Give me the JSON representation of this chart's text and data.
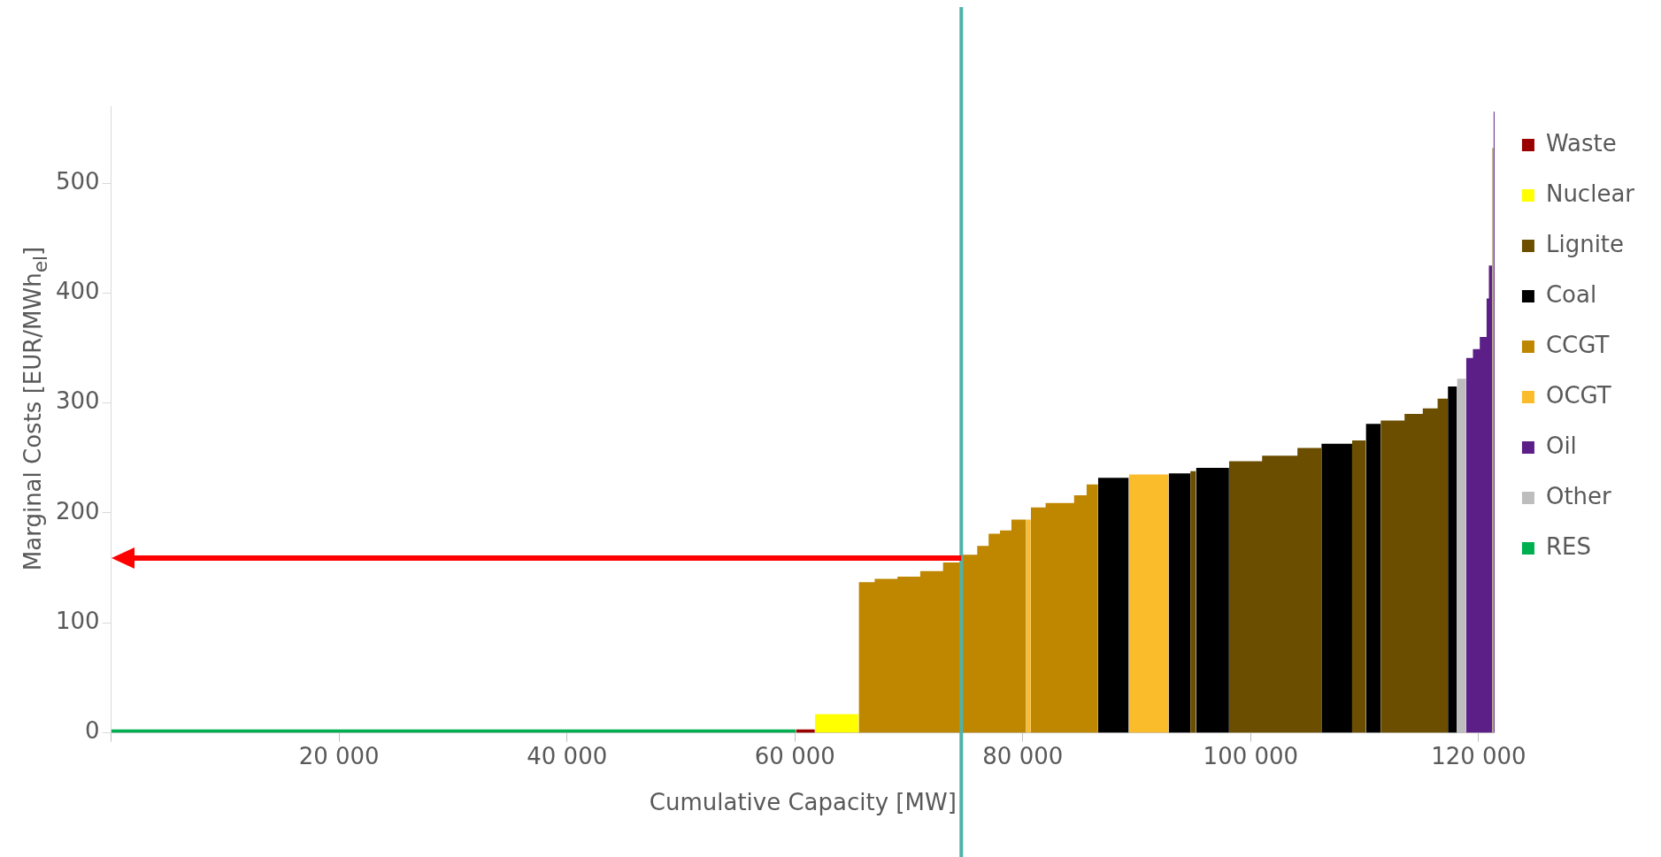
{
  "chart_data": {
    "type": "area",
    "xlabel": "Cumulative Capacity [MW]",
    "ylabel": "Marginal Costs [EUR/MWh$_{el}$]",
    "xlim": [
      0,
      121400
    ],
    "ylim": [
      0,
      570
    ],
    "xticks": [
      {
        "value": 0,
        "label": null
      },
      {
        "value": 20000,
        "label": "20 000"
      },
      {
        "value": 40000,
        "label": "40 000"
      },
      {
        "value": 60000,
        "label": "60 000"
      },
      {
        "value": 80000,
        "label": "80 000"
      },
      {
        "value": 100000,
        "label": "100 000"
      },
      {
        "value": 120000,
        "label": "120 000"
      }
    ],
    "yticks": [
      0,
      100,
      200,
      300,
      400,
      500
    ],
    "grid": false,
    "legend": "right",
    "ref_lines": [
      {
        "axis": "x",
        "value": 74600,
        "color": "#4fb3a9"
      },
      {
        "axis": "y",
        "value": 159,
        "color": "#ff0000"
      }
    ],
    "series": [
      {
        "name": "Waste",
        "color": "#9b0000",
        "x": [
          60100,
          61750
        ],
        "values": [
          3,
          3
        ]
      },
      {
        "name": "Nuclear",
        "color": "#ffff00",
        "x": [
          61750,
          65600
        ],
        "values": [
          17,
          17
        ]
      },
      {
        "name": "Lignite",
        "color": "#6b4e00",
        "x": [
          94700,
          94950,
          95200,
          null,
          98100,
          101000,
          101000,
          104100,
          104100,
          106200,
          null,
          108900,
          110100,
          null,
          111400,
          113500,
          113500,
          115100,
          115100,
          116400,
          116400,
          117300,
          null,
          121200,
          121300
        ],
        "values": [
          238,
          238,
          238,
          null,
          247,
          247,
          252,
          252,
          259,
          259,
          null,
          266,
          266,
          null,
          284,
          284,
          290,
          290,
          295,
          295,
          304,
          304,
          null,
          532,
          532
        ]
      },
      {
        "name": "Coal",
        "color": "#000000",
        "x": [
          86600,
          89300,
          null,
          92800,
          94700,
          null,
          95200,
          98100,
          null,
          106200,
          108900,
          null,
          110100,
          111400,
          null,
          117300,
          118100
        ],
        "values": [
          232,
          232,
          null,
          236,
          236,
          null,
          241,
          241,
          null,
          263,
          263,
          null,
          281,
          281,
          null,
          315,
          315
        ]
      },
      {
        "name": "CCGT",
        "color": "#bf8600",
        "x": [
          65600,
          67000,
          67000,
          69000,
          69000,
          71000,
          71000,
          73000,
          73000,
          74600,
          74600,
          76000,
          76000,
          77000,
          77000,
          78000,
          78000,
          79000,
          79000,
          80300,
          null,
          80700,
          82000,
          82000,
          84500,
          84500,
          85600,
          85600,
          86600
        ],
        "values": [
          137,
          137,
          140,
          140,
          142,
          142,
          147,
          147,
          155,
          155,
          162,
          162,
          170,
          170,
          181,
          181,
          184,
          184,
          194,
          194,
          null,
          205,
          205,
          209,
          209,
          216,
          216,
          226,
          226
        ]
      },
      {
        "name": "OCGT",
        "color": "#fbbc2b",
        "x": [
          80300,
          80500,
          80700,
          null,
          89300,
          92800
        ],
        "values": [
          194,
          194,
          194,
          null,
          235,
          235
        ]
      },
      {
        "name": "Oil",
        "color": "#5b1f87",
        "x": [
          118900,
          119500,
          119500,
          120100,
          120100,
          120700,
          120700,
          120900,
          120900,
          121200,
          null,
          121300,
          121400
        ],
        "values": [
          341,
          341,
          349,
          349,
          360,
          360,
          395,
          395,
          425,
          425,
          null,
          565,
          565
        ]
      },
      {
        "name": "Other",
        "color": "#bdbdbd",
        "x": [
          118100,
          118900
        ],
        "values": [
          322,
          322
        ]
      },
      {
        "name": "RES",
        "color": "#00b050",
        "x": [
          0,
          60100
        ],
        "values": [
          3,
          3
        ]
      }
    ]
  }
}
